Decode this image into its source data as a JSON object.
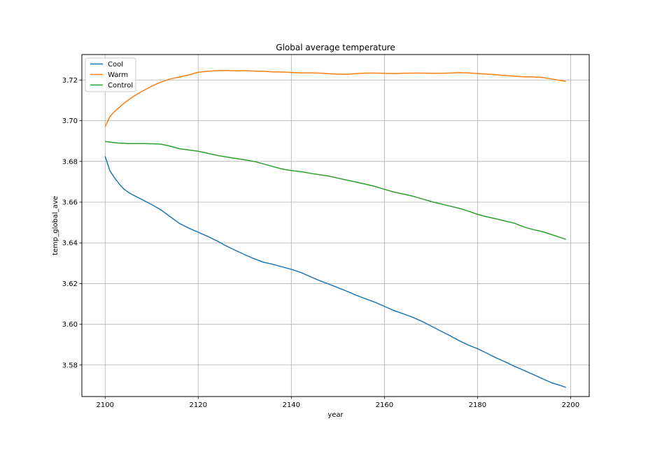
{
  "chart_data": {
    "type": "line",
    "title": "Global average temperature",
    "xlabel": "year",
    "ylabel": "temp_global_ave",
    "xlim": [
      2095,
      2204
    ],
    "ylim": [
      3.5645,
      3.7325
    ],
    "xticks": [
      2100,
      2120,
      2140,
      2160,
      2180,
      2200
    ],
    "yticks": [
      3.58,
      3.6,
      3.62,
      3.64,
      3.66,
      3.68,
      3.7,
      3.72
    ],
    "grid": true,
    "legend_position": "top-left",
    "x": [
      2100,
      2101,
      2102,
      2103,
      2104,
      2105,
      2106,
      2108,
      2110,
      2112,
      2114,
      2116,
      2118,
      2120,
      2122,
      2124,
      2126,
      2128,
      2130,
      2132,
      2134,
      2136,
      2138,
      2140,
      2142,
      2144,
      2146,
      2148,
      2150,
      2152,
      2154,
      2156,
      2158,
      2160,
      2162,
      2164,
      2166,
      2168,
      2170,
      2172,
      2174,
      2176,
      2178,
      2180,
      2182,
      2184,
      2186,
      2188,
      2190,
      2192,
      2194,
      2196,
      2198,
      2199
    ],
    "series": [
      {
        "name": "Cool",
        "color": "#1f77b4",
        "values": [
          3.6825,
          3.6755,
          3.672,
          3.669,
          3.6665,
          3.6648,
          3.6635,
          3.6612,
          3.6588,
          3.6562,
          3.6528,
          3.6495,
          3.6472,
          3.6452,
          3.6432,
          3.641,
          3.6385,
          3.6363,
          3.6342,
          3.6322,
          3.6305,
          3.6295,
          3.6282,
          3.627,
          3.6255,
          3.6235,
          3.6215,
          3.6198,
          3.618,
          3.6162,
          3.6142,
          3.6125,
          3.6108,
          3.6088,
          3.6068,
          3.6052,
          3.6035,
          3.6015,
          3.5992,
          3.5968,
          3.5945,
          3.592,
          3.5898,
          3.588,
          3.5858,
          3.5835,
          3.5815,
          3.5793,
          3.5773,
          3.5753,
          3.5732,
          3.5712,
          3.5698,
          3.569
        ]
      },
      {
        "name": "Warm",
        "color": "#ff7f0e",
        "values": [
          3.697,
          3.702,
          3.7045,
          3.7065,
          3.7085,
          3.7102,
          3.7118,
          3.7145,
          3.717,
          3.719,
          3.7205,
          3.7215,
          3.7225,
          3.7238,
          3.7243,
          3.7246,
          3.7247,
          3.7245,
          3.7246,
          3.7244,
          3.7243,
          3.724,
          3.7239,
          3.7237,
          3.7235,
          3.7235,
          3.7234,
          3.7231,
          3.7229,
          3.7228,
          3.7232,
          3.7234,
          3.7234,
          3.7233,
          3.7232,
          3.7233,
          3.7234,
          3.7234,
          3.7233,
          3.7233,
          3.7234,
          3.7236,
          3.7235,
          3.7232,
          3.7229,
          3.7226,
          3.7222,
          3.7219,
          3.7216,
          3.7215,
          3.7212,
          3.7205,
          3.7197,
          3.7193
        ]
      },
      {
        "name": "Control",
        "color": "#2ca02c",
        "values": [
          3.6898,
          3.6895,
          3.6892,
          3.689,
          3.6889,
          3.6888,
          3.6888,
          3.6888,
          3.6887,
          3.6885,
          3.6875,
          3.6862,
          3.6856,
          3.685,
          3.684,
          3.683,
          3.6822,
          3.6815,
          3.6808,
          3.68,
          3.6788,
          3.6775,
          3.6763,
          3.6755,
          3.675,
          3.6742,
          3.6735,
          3.6728,
          3.6718,
          3.6708,
          3.6698,
          3.6688,
          3.6677,
          3.6663,
          3.665,
          3.664,
          3.663,
          3.6617,
          3.6603,
          3.6592,
          3.6581,
          3.657,
          3.6556,
          3.654,
          3.6528,
          3.6518,
          3.6507,
          3.6496,
          3.6478,
          3.6465,
          3.6455,
          3.644,
          3.6425,
          3.6417
        ]
      }
    ]
  }
}
